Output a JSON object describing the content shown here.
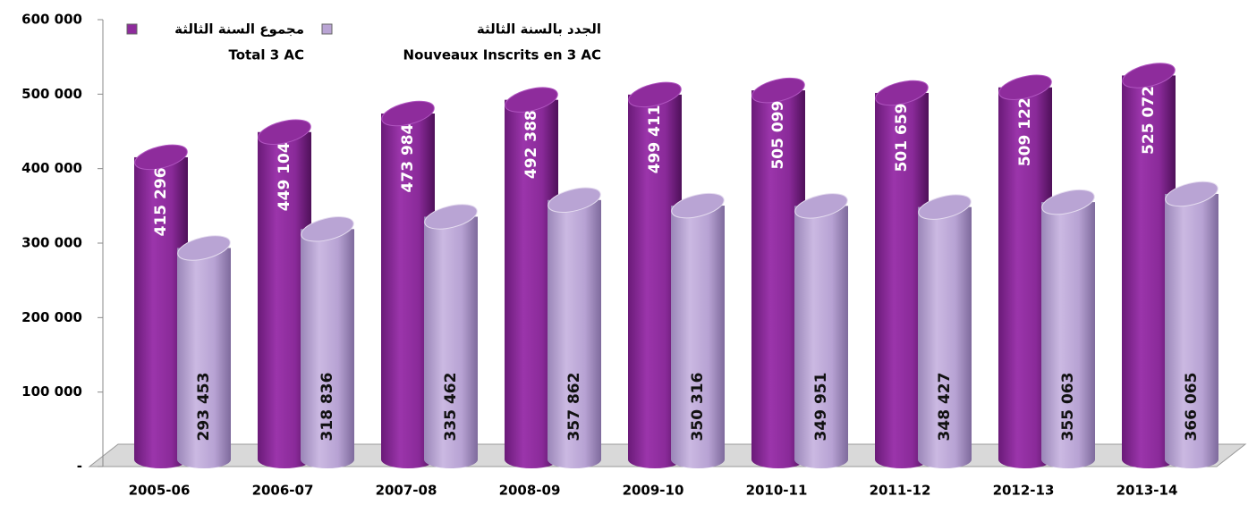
{
  "chart_data": {
    "type": "bar",
    "categories": [
      "2005-06",
      "2006-07",
      "2007-08",
      "2008-09",
      "2009-10",
      "2010-11",
      "2011-12",
      "2012-13",
      "2013-14"
    ],
    "series": [
      {
        "name": "مجموع السنة الثالثة",
        "name_fr": "Total 3 AC",
        "color": "#8e2c9c",
        "values": [
          415296,
          449104,
          473984,
          492388,
          499411,
          505099,
          501659,
          509122,
          525072
        ],
        "value_labels": [
          "415 296",
          "449 104",
          "473 984",
          "492 388",
          "499 411",
          "505 099",
          "501 659",
          "509 122",
          "525 072"
        ]
      },
      {
        "name": "الجدد بالسنة الثالثة",
        "name_fr": "Nouveaux Inscrits en 3 AC",
        "color": "#b9a4d4",
        "values": [
          293453,
          318836,
          335462,
          357862,
          350316,
          349951,
          348427,
          355063,
          366065
        ],
        "value_labels": [
          "293 453",
          "318 836",
          "335 462",
          "357 862",
          "350 316",
          "349 951",
          "348 427",
          "355 063",
          "366 065"
        ]
      }
    ],
    "ylim": [
      0,
      600000
    ],
    "yticks": [
      {
        "value": 0,
        "label": "-"
      },
      {
        "value": 100000,
        "label": "100 000"
      },
      {
        "value": 200000,
        "label": "200 000"
      },
      {
        "value": 300000,
        "label": "300 000"
      },
      {
        "value": 400000,
        "label": "400 000"
      },
      {
        "value": 500000,
        "label": "500 000"
      },
      {
        "value": 600000,
        "label": "600 000"
      }
    ]
  }
}
